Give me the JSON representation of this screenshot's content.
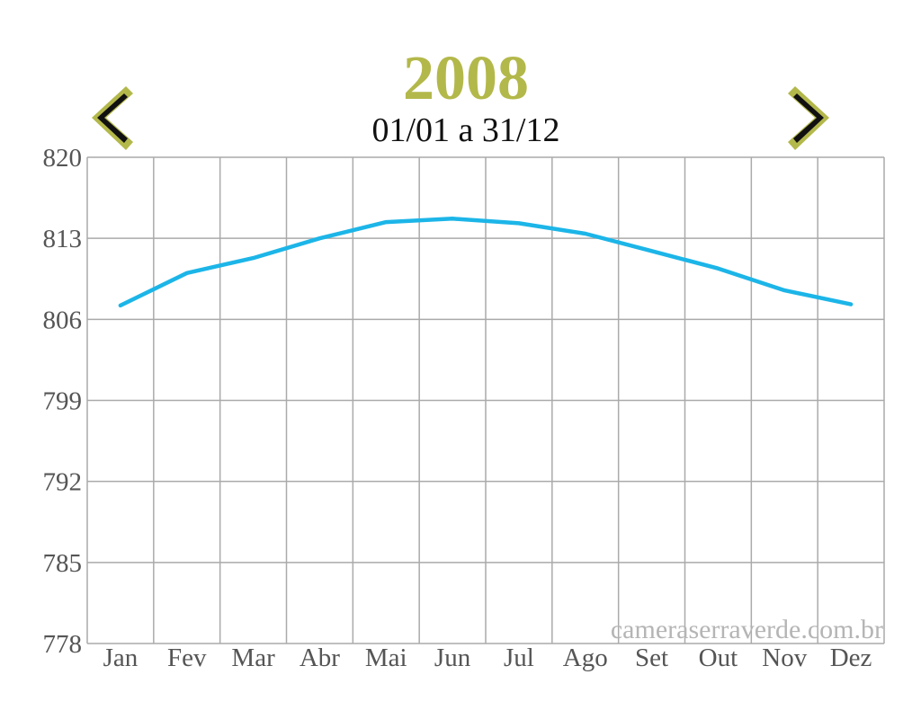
{
  "chart_data": {
    "type": "line",
    "title": "2008",
    "subtitle": "01/01 a 31/12",
    "watermark": "cameraserraverde.com.br",
    "categories": [
      "Jan",
      "Fev",
      "Mar",
      "Abr",
      "Mai",
      "Jun",
      "Jul",
      "Ago",
      "Set",
      "Out",
      "Nov",
      "Dez"
    ],
    "series": [
      {
        "color": "#1cb5e8",
        "values": [
          807.2,
          810.0,
          811.3,
          813.0,
          814.4,
          814.7,
          814.3,
          813.4,
          811.9,
          810.4,
          808.5,
          807.3
        ]
      }
    ],
    "ylim": [
      778,
      820
    ],
    "yticks": [
      778,
      785,
      792,
      799,
      806,
      813,
      820
    ],
    "grid": true
  }
}
